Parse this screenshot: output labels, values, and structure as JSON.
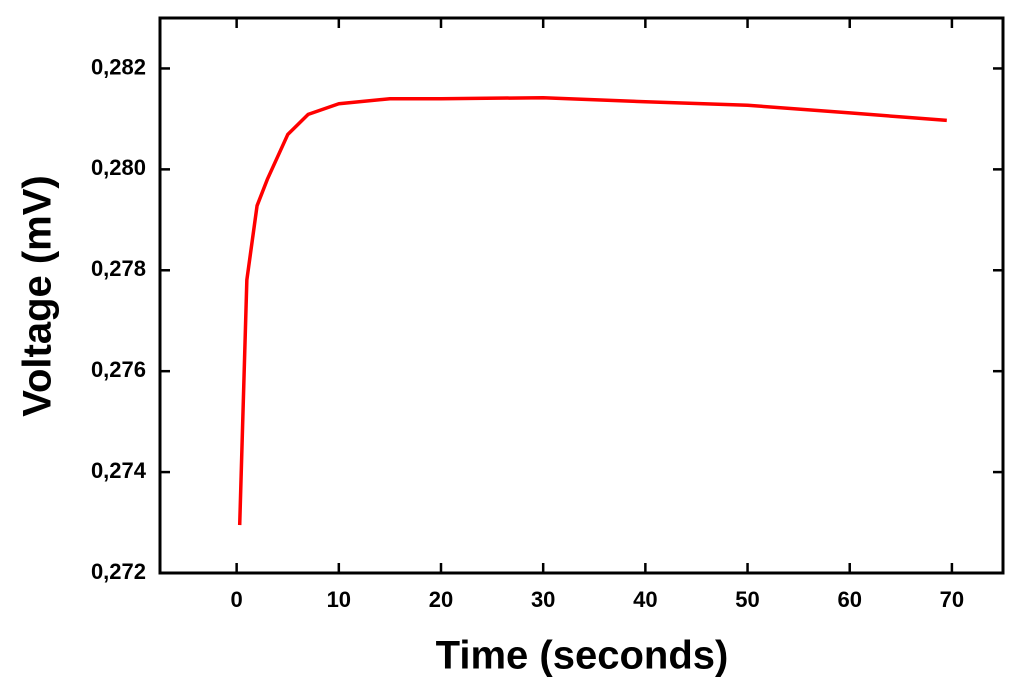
{
  "chart_data": {
    "type": "line",
    "xlabel": "Time (seconds)",
    "ylabel": "Voltage (mV)",
    "x": [
      0.3,
      1,
      2,
      3,
      5,
      7,
      10,
      15,
      20,
      30,
      40,
      50,
      60,
      65,
      69.5
    ],
    "series": [
      {
        "color": "#ff0000",
        "values": [
          0.27295,
          0.27781,
          0.27928,
          0.2798,
          0.28069,
          0.28109,
          0.2813,
          0.2814,
          0.2814,
          0.28142,
          0.28134,
          0.28127,
          0.28112,
          0.28104,
          0.28097
        ]
      }
    ],
    "xlim": [
      -7.5,
      75
    ],
    "xticks": [
      0,
      10,
      20,
      30,
      40,
      50,
      60,
      70
    ],
    "ylim": [
      0.272,
      0.283
    ],
    "yticks": [
      {
        "value": 0.272,
        "label": "0,272"
      },
      {
        "value": 0.274,
        "label": "0,274"
      },
      {
        "value": 0.276,
        "label": "0,276"
      },
      {
        "value": 0.278,
        "label": "0,278"
      },
      {
        "value": 0.28,
        "label": "0,280"
      },
      {
        "value": 0.282,
        "label": "0,282"
      }
    ]
  }
}
